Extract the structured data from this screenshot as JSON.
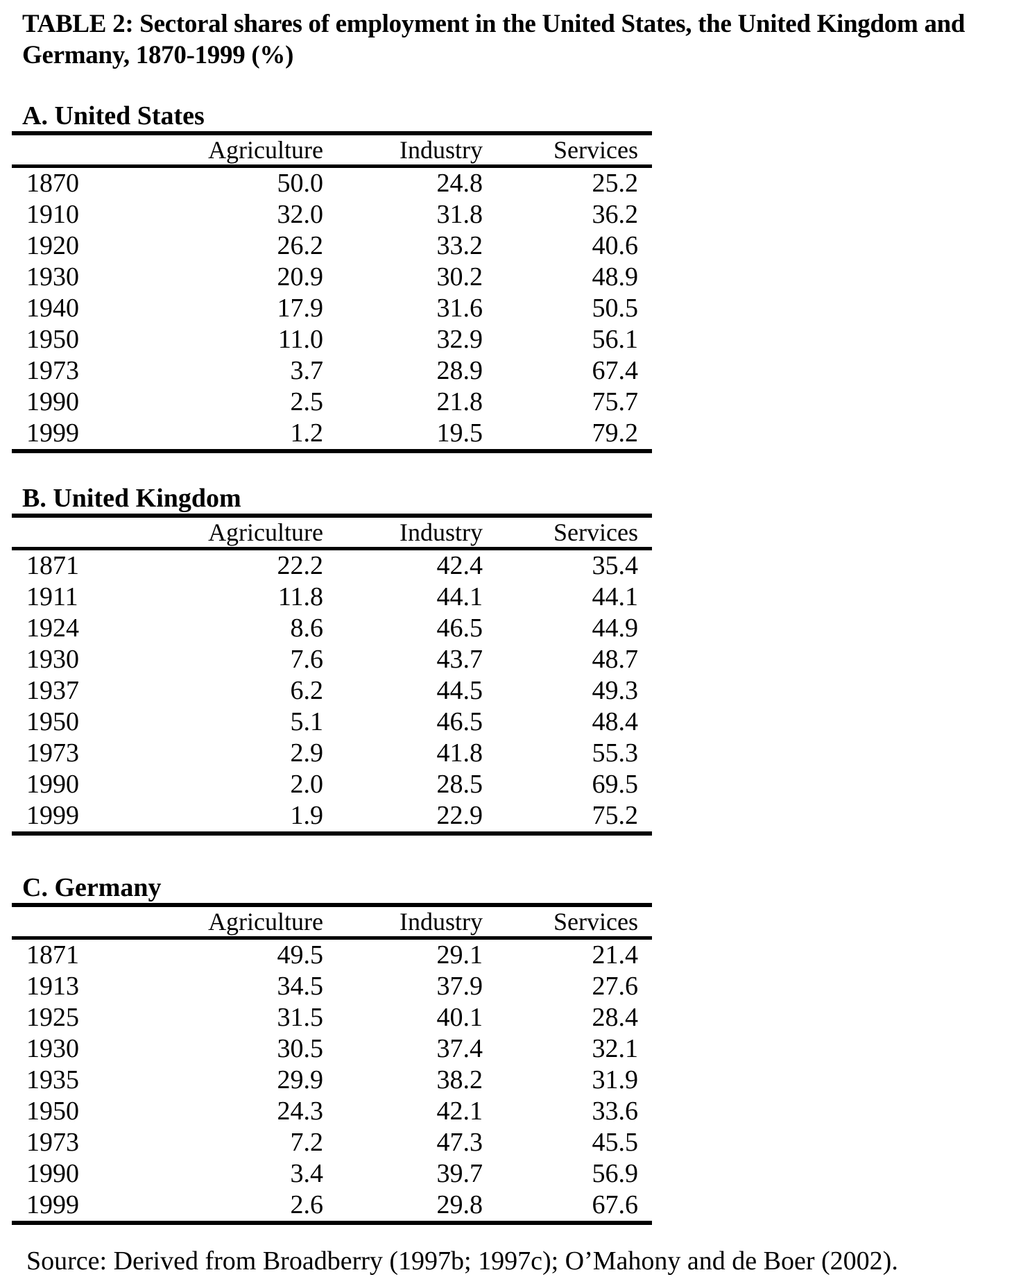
{
  "title": {
    "line1": "TABLE 2: Sectoral shares of employment in the United States, the United Kingdom and",
    "line2": "Germany, 1870-1999 (%)"
  },
  "columns": [
    "Agriculture",
    "Industry",
    "Services"
  ],
  "panels": [
    {
      "heading": "A. United States",
      "rows": [
        [
          "1870",
          "50.0",
          "24.8",
          "25.2"
        ],
        [
          "1910",
          "32.0",
          "31.8",
          "36.2"
        ],
        [
          "1920",
          "26.2",
          "33.2",
          "40.6"
        ],
        [
          "1930",
          "20.9",
          "30.2",
          "48.9"
        ],
        [
          "1940",
          "17.9",
          "31.6",
          "50.5"
        ],
        [
          "1950",
          "11.0",
          "32.9",
          "56.1"
        ],
        [
          "1973",
          "3.7",
          "28.9",
          "67.4"
        ],
        [
          "1990",
          "2.5",
          "21.8",
          "75.7"
        ],
        [
          "1999",
          "1.2",
          "19.5",
          "79.2"
        ]
      ]
    },
    {
      "heading": "B. United Kingdom",
      "rows": [
        [
          "1871",
          "22.2",
          "42.4",
          "35.4"
        ],
        [
          "1911",
          "11.8",
          "44.1",
          "44.1"
        ],
        [
          "1924",
          "8.6",
          "46.5",
          "44.9"
        ],
        [
          "1930",
          "7.6",
          "43.7",
          "48.7"
        ],
        [
          "1937",
          "6.2",
          "44.5",
          "49.3"
        ],
        [
          "1950",
          "5.1",
          "46.5",
          "48.4"
        ],
        [
          "1973",
          "2.9",
          "41.8",
          "55.3"
        ],
        [
          "1990",
          "2.0",
          "28.5",
          "69.5"
        ],
        [
          "1999",
          "1.9",
          "22.9",
          "75.2"
        ]
      ]
    },
    {
      "heading": "C. Germany",
      "rows": [
        [
          "1871",
          "49.5",
          "29.1",
          "21.4"
        ],
        [
          "1913",
          "34.5",
          "37.9",
          "27.6"
        ],
        [
          "1925",
          "31.5",
          "40.1",
          "28.4"
        ],
        [
          "1930",
          "30.5",
          "37.4",
          "32.1"
        ],
        [
          "1935",
          "29.9",
          "38.2",
          "31.9"
        ],
        [
          "1950",
          "24.3",
          "42.1",
          "33.6"
        ],
        [
          "1973",
          "7.2",
          "47.3",
          "45.5"
        ],
        [
          "1990",
          "3.4",
          "39.7",
          "56.9"
        ],
        [
          "1999",
          "2.6",
          "29.8",
          "67.6"
        ]
      ]
    }
  ],
  "source": "Source: Derived from Broadberry (1997b; 1997c); O’Mahony and de Boer (2002)."
}
